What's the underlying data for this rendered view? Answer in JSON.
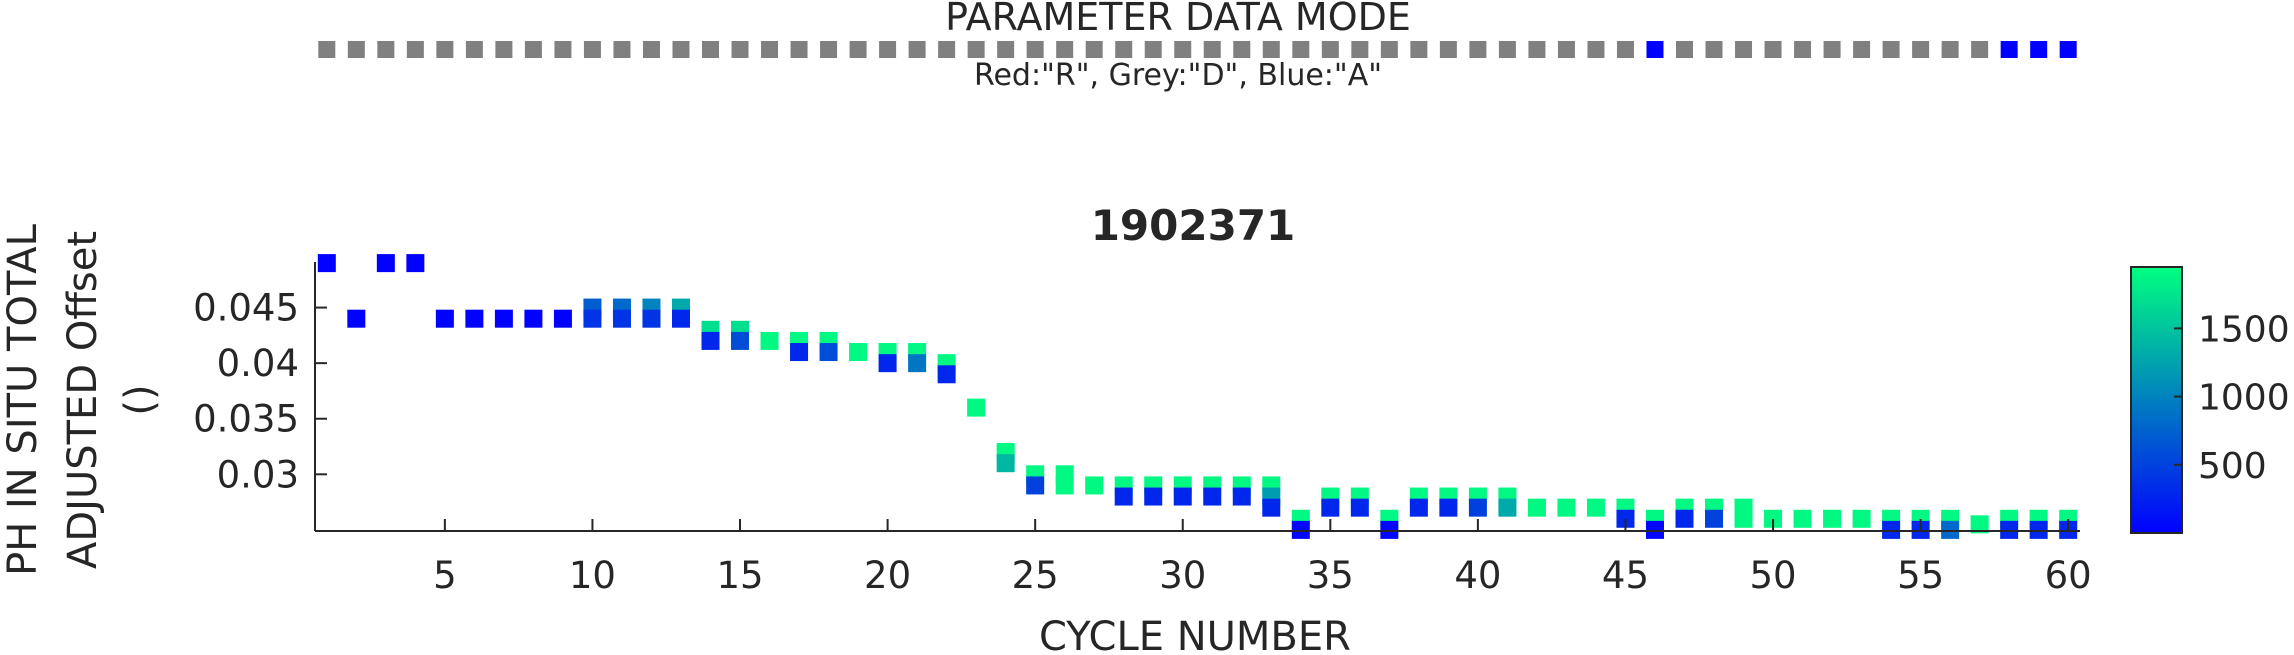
{
  "mode_strip": {
    "title": "PARAMETER DATA MODE",
    "legend": "Red:\"R\", Grey:\"D\", Blue:\"A\"",
    "mode_colors": {
      "R": "#ff0000",
      "D": "#808080",
      "A": "#0000ff"
    },
    "cycles": [
      1,
      2,
      3,
      4,
      5,
      6,
      7,
      8,
      9,
      10,
      11,
      12,
      13,
      14,
      15,
      16,
      17,
      18,
      19,
      20,
      21,
      22,
      23,
      24,
      25,
      26,
      27,
      28,
      29,
      30,
      31,
      32,
      33,
      34,
      35,
      36,
      37,
      38,
      39,
      40,
      41,
      42,
      43,
      44,
      45,
      46,
      47,
      48,
      49,
      50,
      51,
      52,
      53,
      54,
      55,
      56,
      57,
      58,
      59,
      60
    ],
    "modes": [
      "D",
      "D",
      "D",
      "D",
      "D",
      "D",
      "D",
      "D",
      "D",
      "D",
      "D",
      "D",
      "D",
      "D",
      "D",
      "D",
      "D",
      "D",
      "D",
      "D",
      "D",
      "D",
      "D",
      "D",
      "D",
      "D",
      "D",
      "D",
      "D",
      "D",
      "D",
      "D",
      "D",
      "D",
      "D",
      "D",
      "D",
      "D",
      "D",
      "D",
      "D",
      "D",
      "D",
      "D",
      "D",
      "A",
      "D",
      "D",
      "D",
      "D",
      "D",
      "D",
      "D",
      "D",
      "D",
      "D",
      "D",
      "A",
      "A",
      "A"
    ]
  },
  "chart_data": {
    "type": "scatter",
    "title": "1902371",
    "xlabel": "CYCLE NUMBER",
    "ylabel_lines": [
      "PH IN SITU TOTAL",
      "ADJUSTED Offset",
      "()"
    ],
    "xlim": [
      0.6,
      60.4
    ],
    "ylim": [
      0.0249,
      0.0491
    ],
    "xticks": [
      5,
      10,
      15,
      20,
      25,
      30,
      35,
      40,
      45,
      50,
      55,
      60
    ],
    "xtick_labels": [
      "5",
      "10",
      "15",
      "20",
      "25",
      "30",
      "35",
      "40",
      "45",
      "50",
      "55",
      "60"
    ],
    "yticks": [
      0.03,
      0.035,
      0.04,
      0.045
    ],
    "ytick_labels": [
      "0.03",
      "0.035",
      "0.04",
      "0.045"
    ],
    "colorbar": {
      "range": [
        0,
        1950
      ],
      "ticks": [
        500,
        1000,
        1500
      ],
      "tick_labels": [
        "500",
        "1000",
        "1500"
      ],
      "colormap": "winter",
      "color_low": "#0000ff",
      "color_high": "#00ff80"
    },
    "points": [
      {
        "x": 1,
        "y": 0.049,
        "c": 10
      },
      {
        "x": 2,
        "y": 0.044,
        "c": 10
      },
      {
        "x": 3,
        "y": 0.049,
        "c": 10
      },
      {
        "x": 4,
        "y": 0.049,
        "c": 10
      },
      {
        "x": 5,
        "y": 0.044,
        "c": 10
      },
      {
        "x": 6,
        "y": 0.044,
        "c": 10
      },
      {
        "x": 7,
        "y": 0.044,
        "c": 10
      },
      {
        "x": 8,
        "y": 0.044,
        "c": 10
      },
      {
        "x": 9,
        "y": 0.044,
        "c": 10
      },
      {
        "x": 10,
        "y": 0.045,
        "c": 700
      },
      {
        "x": 10,
        "y": 0.044,
        "c": 400
      },
      {
        "x": 11,
        "y": 0.045,
        "c": 800
      },
      {
        "x": 11,
        "y": 0.044,
        "c": 400
      },
      {
        "x": 12,
        "y": 0.045,
        "c": 1000
      },
      {
        "x": 12,
        "y": 0.044,
        "c": 400
      },
      {
        "x": 13,
        "y": 0.045,
        "c": 1300
      },
      {
        "x": 13,
        "y": 0.044,
        "c": 300
      },
      {
        "x": 14,
        "y": 0.043,
        "c": 1700
      },
      {
        "x": 14,
        "y": 0.042,
        "c": 300
      },
      {
        "x": 15,
        "y": 0.043,
        "c": 1700
      },
      {
        "x": 15,
        "y": 0.042,
        "c": 600
      },
      {
        "x": 16,
        "y": 0.042,
        "c": 1900
      },
      {
        "x": 17,
        "y": 0.042,
        "c": 1900
      },
      {
        "x": 17,
        "y": 0.041,
        "c": 300
      },
      {
        "x": 18,
        "y": 0.042,
        "c": 1900
      },
      {
        "x": 18,
        "y": 0.041,
        "c": 600
      },
      {
        "x": 19,
        "y": 0.041,
        "c": 1900
      },
      {
        "x": 20,
        "y": 0.041,
        "c": 1900
      },
      {
        "x": 20,
        "y": 0.04,
        "c": 300
      },
      {
        "x": 21,
        "y": 0.041,
        "c": 1900
      },
      {
        "x": 21,
        "y": 0.04,
        "c": 900
      },
      {
        "x": 22,
        "y": 0.04,
        "c": 1900
      },
      {
        "x": 22,
        "y": 0.039,
        "c": 300
      },
      {
        "x": 23,
        "y": 0.036,
        "c": 1900
      },
      {
        "x": 24,
        "y": 0.032,
        "c": 1900
      },
      {
        "x": 24,
        "y": 0.031,
        "c": 1400
      },
      {
        "x": 25,
        "y": 0.03,
        "c": 1900
      },
      {
        "x": 25,
        "y": 0.029,
        "c": 500
      },
      {
        "x": 26,
        "y": 0.03,
        "c": 1900
      },
      {
        "x": 26,
        "y": 0.029,
        "c": 1900
      },
      {
        "x": 27,
        "y": 0.029,
        "c": 1900
      },
      {
        "x": 28,
        "y": 0.029,
        "c": 1900
      },
      {
        "x": 28,
        "y": 0.028,
        "c": 300
      },
      {
        "x": 29,
        "y": 0.029,
        "c": 1900
      },
      {
        "x": 29,
        "y": 0.028,
        "c": 300
      },
      {
        "x": 30,
        "y": 0.029,
        "c": 1900
      },
      {
        "x": 30,
        "y": 0.028,
        "c": 300
      },
      {
        "x": 31,
        "y": 0.029,
        "c": 1900
      },
      {
        "x": 31,
        "y": 0.028,
        "c": 300
      },
      {
        "x": 32,
        "y": 0.029,
        "c": 1900
      },
      {
        "x": 32,
        "y": 0.028,
        "c": 300
      },
      {
        "x": 33,
        "y": 0.029,
        "c": 1900
      },
      {
        "x": 33,
        "y": 0.028,
        "c": 1200
      },
      {
        "x": 33,
        "y": 0.027,
        "c": 300
      },
      {
        "x": 34,
        "y": 0.026,
        "c": 1900
      },
      {
        "x": 34,
        "y": 0.025,
        "c": 50
      },
      {
        "x": 35,
        "y": 0.028,
        "c": 1900
      },
      {
        "x": 35,
        "y": 0.027,
        "c": 300
      },
      {
        "x": 36,
        "y": 0.028,
        "c": 1900
      },
      {
        "x": 36,
        "y": 0.027,
        "c": 300
      },
      {
        "x": 37,
        "y": 0.026,
        "c": 1900
      },
      {
        "x": 37,
        "y": 0.025,
        "c": 50
      },
      {
        "x": 38,
        "y": 0.028,
        "c": 1900
      },
      {
        "x": 38,
        "y": 0.027,
        "c": 300
      },
      {
        "x": 39,
        "y": 0.028,
        "c": 1900
      },
      {
        "x": 39,
        "y": 0.027,
        "c": 300
      },
      {
        "x": 40,
        "y": 0.028,
        "c": 1900
      },
      {
        "x": 40,
        "y": 0.027,
        "c": 500
      },
      {
        "x": 41,
        "y": 0.028,
        "c": 1900
      },
      {
        "x": 41,
        "y": 0.027,
        "c": 1300
      },
      {
        "x": 42,
        "y": 0.027,
        "c": 1900
      },
      {
        "x": 43,
        "y": 0.027,
        "c": 1900
      },
      {
        "x": 44,
        "y": 0.027,
        "c": 1900
      },
      {
        "x": 45,
        "y": 0.027,
        "c": 1900
      },
      {
        "x": 45,
        "y": 0.026,
        "c": 300
      },
      {
        "x": 46,
        "y": 0.026,
        "c": 1900
      },
      {
        "x": 46,
        "y": 0.025,
        "c": 50
      },
      {
        "x": 47,
        "y": 0.027,
        "c": 1900
      },
      {
        "x": 47,
        "y": 0.026,
        "c": 300
      },
      {
        "x": 48,
        "y": 0.027,
        "c": 1900
      },
      {
        "x": 48,
        "y": 0.026,
        "c": 500
      },
      {
        "x": 49,
        "y": 0.027,
        "c": 1900
      },
      {
        "x": 49,
        "y": 0.026,
        "c": 1900
      },
      {
        "x": 50,
        "y": 0.026,
        "c": 1900
      },
      {
        "x": 51,
        "y": 0.026,
        "c": 1900
      },
      {
        "x": 52,
        "y": 0.026,
        "c": 1900
      },
      {
        "x": 53,
        "y": 0.026,
        "c": 1900
      },
      {
        "x": 54,
        "y": 0.026,
        "c": 1900
      },
      {
        "x": 54,
        "y": 0.025,
        "c": 300
      },
      {
        "x": 55,
        "y": 0.026,
        "c": 1900
      },
      {
        "x": 55,
        "y": 0.025,
        "c": 300
      },
      {
        "x": 56,
        "y": 0.026,
        "c": 1900
      },
      {
        "x": 56,
        "y": 0.025,
        "c": 800
      },
      {
        "x": 57,
        "y": 0.0255,
        "c": 1900
      },
      {
        "x": 58,
        "y": 0.026,
        "c": 1900
      },
      {
        "x": 58,
        "y": 0.025,
        "c": 300
      },
      {
        "x": 59,
        "y": 0.026,
        "c": 1900
      },
      {
        "x": 59,
        "y": 0.025,
        "c": 300
      },
      {
        "x": 60,
        "y": 0.026,
        "c": 1900
      },
      {
        "x": 60,
        "y": 0.025,
        "c": 300
      }
    ]
  }
}
